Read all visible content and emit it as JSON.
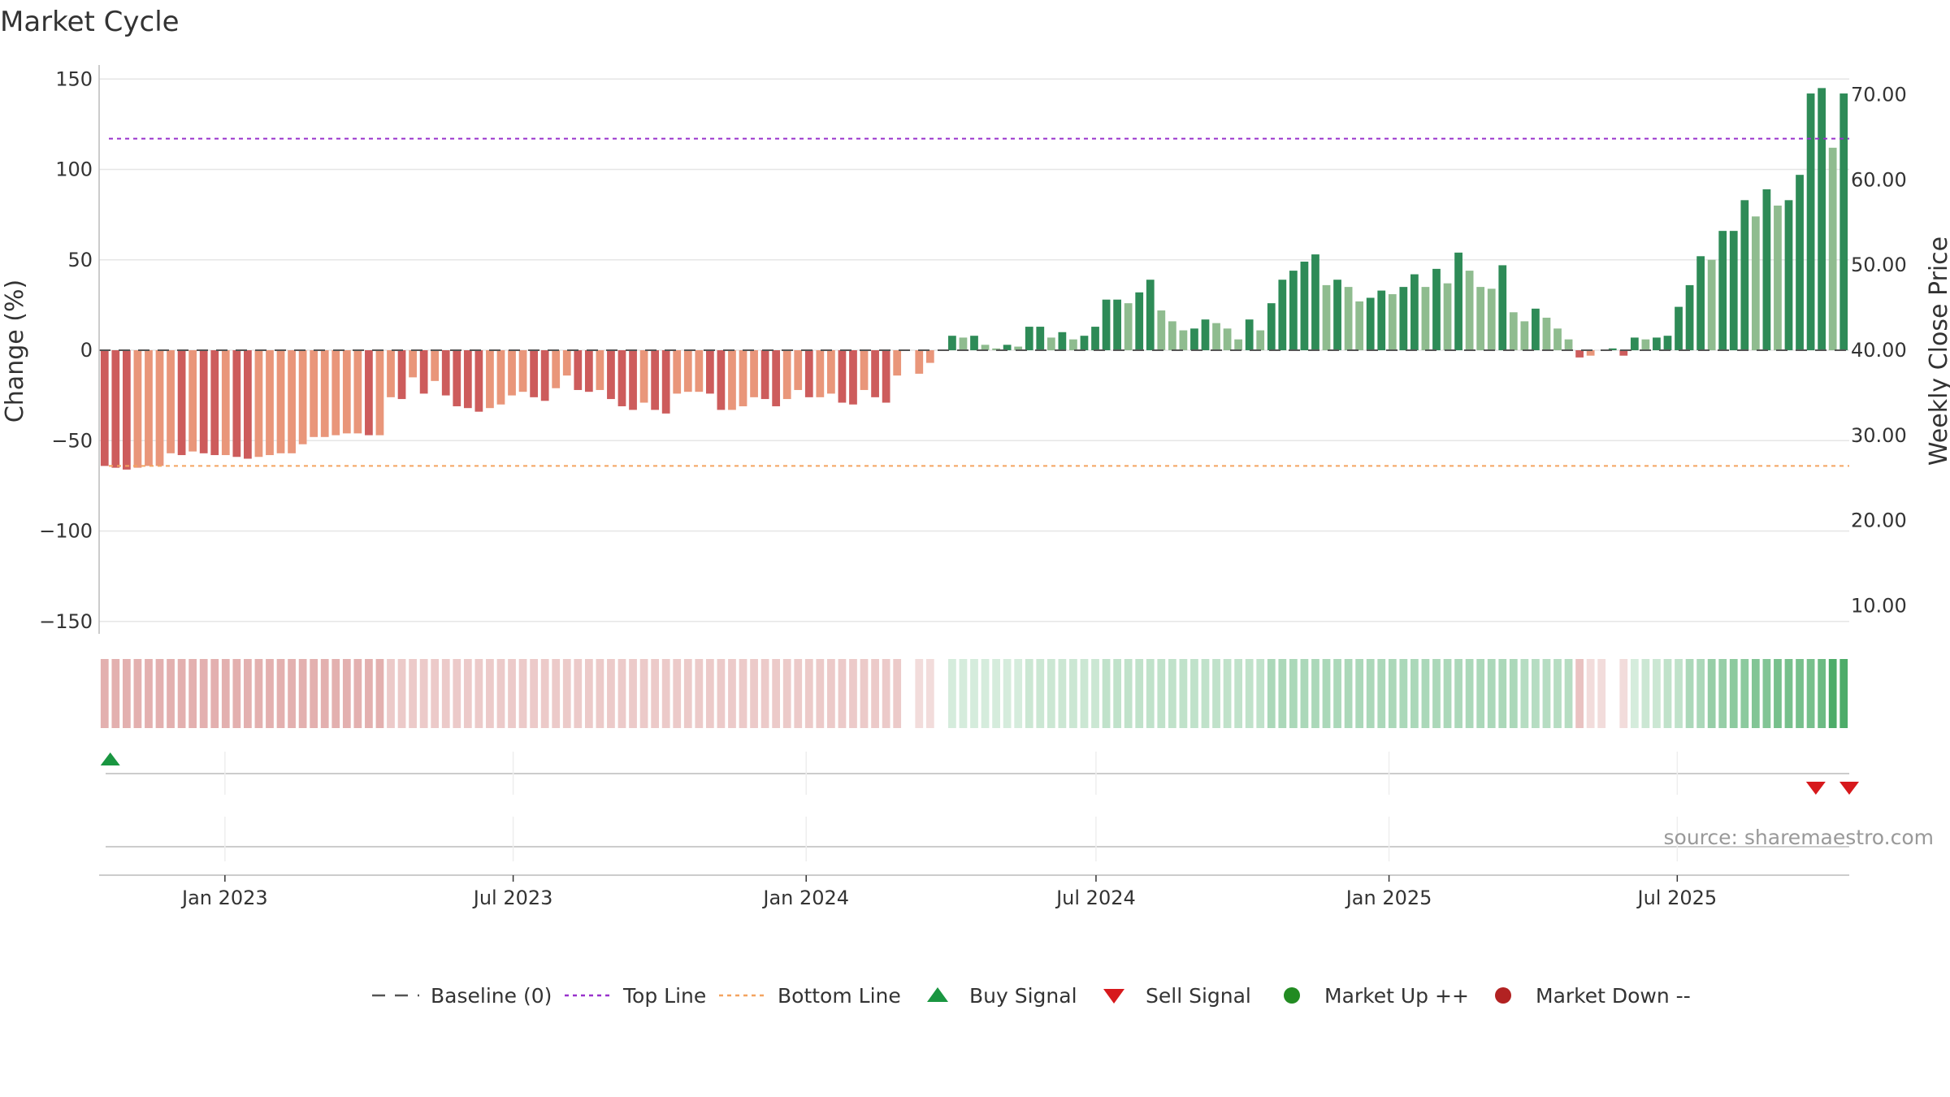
{
  "chart_data": {
    "type": "bar",
    "title": "Market Cycle",
    "ylabel": "Change (%)",
    "ylabel_right": "Weekly Close Price",
    "ylim": [
      -158,
      158
    ],
    "ylim_right": [
      5,
      72
    ],
    "yticks": [
      150,
      100,
      50,
      0,
      -50,
      -100,
      -150
    ],
    "ytick_labels": [
      "150",
      "100",
      "50",
      "0",
      "−50",
      "−100",
      "−150"
    ],
    "yticks_right": [
      70,
      60,
      50,
      40,
      30,
      20,
      10
    ],
    "ytick_labels_right": [
      "70.00",
      "60.00",
      "50.00",
      "40.00",
      "30.00",
      "20.00",
      "10.00"
    ],
    "x_start_date": "2022-10-14",
    "x_end_date": "2025-10-17",
    "x_ticks": [
      {
        "label": "Jan 2023",
        "date": "2023-01-01"
      },
      {
        "label": "Jul 2023",
        "date": "2023-07-01"
      },
      {
        "label": "Jan 2024",
        "date": "2024-01-01"
      },
      {
        "label": "Jul 2024",
        "date": "2024-07-01"
      },
      {
        "label": "Jan 2025",
        "date": "2025-01-01"
      },
      {
        "label": "Jul 2025",
        "date": "2025-07-01"
      }
    ],
    "top_line": 117,
    "bottom_line": -64,
    "baseline": 0,
    "weekly_change": [
      -64,
      -65,
      -66,
      -65,
      -64,
      -64,
      -57,
      -58,
      -56,
      -57,
      -58,
      -58,
      -59,
      -60,
      -59,
      -58,
      -57,
      -57,
      -52,
      -48,
      -48,
      -47,
      -46,
      -46,
      -47,
      -47,
      -26,
      -27,
      -15,
      -24,
      -17,
      -25,
      -31,
      -32,
      -34,
      -32,
      -30,
      -25,
      -23,
      -26,
      -28,
      -21,
      -14,
      -22,
      -23,
      -22,
      -27,
      -31,
      -33,
      -29,
      -33,
      -35,
      -24,
      -23,
      -23,
      -24,
      -33,
      -33,
      -31,
      -26,
      -27,
      -31,
      -27,
      -22,
      -26,
      -26,
      -24,
      -29,
      -30,
      -22,
      -26,
      -29,
      -14,
      null,
      -13,
      -7,
      null,
      8,
      7,
      8,
      3,
      1,
      3,
      2,
      13,
      13,
      7,
      10,
      6,
      8,
      13,
      28,
      28,
      26,
      32,
      39,
      22,
      16,
      11,
      12,
      17,
      15,
      12,
      6,
      17,
      11,
      26,
      39,
      44,
      49,
      53,
      36,
      39,
      35,
      27,
      29,
      33,
      31,
      35,
      42,
      35,
      45,
      37,
      54,
      44,
      35,
      34,
      47,
      21,
      16,
      23,
      18,
      12,
      6,
      -4,
      -3,
      null,
      1,
      -3,
      7,
      6,
      7,
      8,
      24,
      36,
      52,
      50,
      66,
      66,
      83,
      74,
      89,
      80,
      83,
      97,
      142,
      145,
      112,
      142
    ],
    "weekly_close_hint": "Right axis price scale shown; price line not drawn",
    "band_intensity": [
      0.45,
      0.45,
      0.45,
      0.45,
      0.45,
      0.45,
      0.45,
      0.45,
      0.45,
      0.45,
      0.45,
      0.45,
      0.45,
      0.45,
      0.45,
      0.45,
      0.45,
      0.45,
      0.45,
      0.45,
      0.45,
      0.45,
      0.45,
      0.45,
      0.45,
      0.45,
      0.3,
      0.3,
      0.3,
      0.3,
      0.3,
      0.3,
      0.3,
      0.3,
      0.3,
      0.3,
      0.3,
      0.3,
      0.3,
      0.3,
      0.3,
      0.3,
      0.3,
      0.3,
      0.3,
      0.3,
      0.3,
      0.3,
      0.3,
      0.3,
      0.3,
      0.3,
      0.3,
      0.3,
      0.3,
      0.3,
      0.3,
      0.3,
      0.3,
      0.3,
      0.3,
      0.3,
      0.3,
      0.3,
      0.3,
      0.3,
      0.3,
      0.3,
      0.3,
      0.3,
      0.3,
      0.3,
      0.3,
      null,
      0.2,
      0.2,
      null,
      0.2,
      0.2,
      0.2,
      0.2,
      0.2,
      0.2,
      0.2,
      0.25,
      0.25,
      0.25,
      0.25,
      0.25,
      0.25,
      0.25,
      0.3,
      0.3,
      0.3,
      0.3,
      0.3,
      0.3,
      0.3,
      0.3,
      0.3,
      0.3,
      0.3,
      0.3,
      0.3,
      0.3,
      0.3,
      0.4,
      0.4,
      0.4,
      0.4,
      0.4,
      0.4,
      0.4,
      0.4,
      0.4,
      0.4,
      0.4,
      0.4,
      0.4,
      0.4,
      0.4,
      0.4,
      0.4,
      0.4,
      0.4,
      0.4,
      0.4,
      0.4,
      0.4,
      0.35,
      0.35,
      0.35,
      0.35,
      0.35,
      0.35,
      0.2,
      0.2,
      null,
      0.2,
      0.2,
      0.25,
      0.25,
      0.3,
      0.3,
      0.4,
      0.4,
      0.5,
      0.5,
      0.55,
      0.55,
      0.6,
      0.6,
      0.65,
      0.65,
      0.65,
      0.65,
      0.7,
      0.85,
      0.85,
      0.75,
      0.85
    ],
    "buy_signal_dates": [
      "2022-10-21"
    ],
    "sell_signal_dates": [
      "2025-09-26",
      "2025-10-17"
    ],
    "colors": {
      "strong_down": "#cd5c5c",
      "weak_down": "#e9967a",
      "strong_up": "#2e8b57",
      "weak_up": "#8fbc8f",
      "top_line": "#9932cc",
      "bottom_line": "#f4a460",
      "baseline": "#555555",
      "buy": "#1a9641",
      "sell": "#d7191c",
      "market_up": "#228b22",
      "market_down": "#b22222",
      "grid": "#e6e6e6"
    },
    "legend": [
      {
        "label": "Baseline (0)",
        "kind": "dash",
        "color": "#555555"
      },
      {
        "label": "Top Line",
        "kind": "dot",
        "color": "#9932cc"
      },
      {
        "label": "Bottom Line",
        "kind": "dot",
        "color": "#f4a460"
      },
      {
        "label": "Buy Signal",
        "kind": "tri-up",
        "color": "#1a9641"
      },
      {
        "label": "Sell Signal",
        "kind": "tri-down",
        "color": "#d7191c"
      },
      {
        "label": "Market Up ++",
        "kind": "circle",
        "color": "#228b22"
      },
      {
        "label": "Market Down --",
        "kind": "circle",
        "color": "#b22222"
      }
    ],
    "legend_position": "bottom",
    "grid": true,
    "source": "source: sharemaestro.com"
  }
}
